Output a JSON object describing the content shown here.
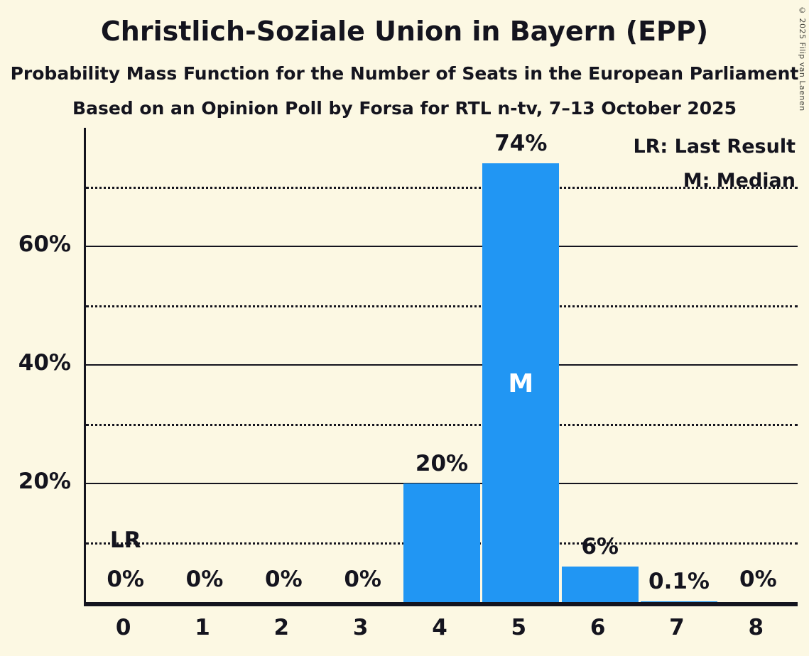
{
  "page": {
    "title": "Christlich-Soziale Union in Bayern (EPP)",
    "subtitle_line1": "Probability Mass Function for the Number of Seats in the European Parliament",
    "subtitle_line2": "Based on an Opinion Poll by Forsa for RTL n-tv, 7–13 October 2025",
    "copyright": "© 2025 Filip van Laenen"
  },
  "legend": {
    "last_result": "LR: Last Result",
    "median": "M: Median"
  },
  "colors": {
    "background": "#FCF8E3",
    "bar": "#2196F3",
    "text": "#14141E",
    "inside_bar_text": "#FFFFFF"
  },
  "chart_data": {
    "type": "bar",
    "title": "Christlich-Soziale Union in Bayern (EPP)",
    "xlabel": "",
    "ylabel": "",
    "categories": [
      "0",
      "1",
      "2",
      "3",
      "4",
      "5",
      "6",
      "7",
      "8"
    ],
    "values": [
      0,
      0,
      0,
      0,
      20,
      74,
      6,
      0.1,
      0
    ],
    "value_labels": [
      "0%",
      "0%",
      "0%",
      "0%",
      "20%",
      "74%",
      "6%",
      "0.1%",
      "0%"
    ],
    "ylim": [
      0,
      80
    ],
    "yticks": [
      {
        "value": 20,
        "label": "20%"
      },
      {
        "value": 40,
        "label": "40%"
      },
      {
        "value": 60,
        "label": "60%"
      }
    ],
    "solid_gridlines": [
      20,
      40,
      60
    ],
    "dotted_gridlines": [
      10,
      30,
      50,
      70
    ],
    "grid": true,
    "legend_position": "top-right",
    "annotations": {
      "median": {
        "category_index": 5,
        "label": "M"
      },
      "last_result": {
        "category_index": 0,
        "label": "LR"
      }
    }
  }
}
